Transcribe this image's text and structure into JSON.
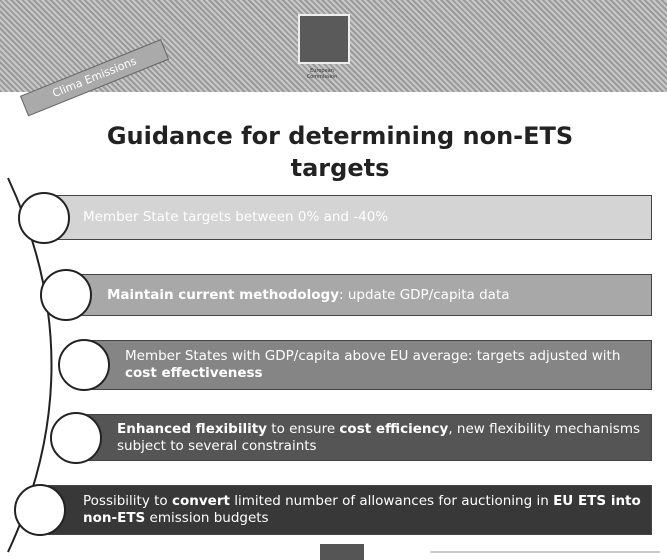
{
  "badge": "Clima Emissions",
  "logo_text": [
    "European",
    "Commission"
  ],
  "title": [
    "Guidance for determining non-ETS",
    "targets"
  ],
  "items": [
    {
      "parts": [
        {
          "text": "Member State targets between 0% and -40%",
          "bold": false
        }
      ]
    },
    {
      "parts": [
        {
          "text": "Maintain current methodology",
          "bold": true
        },
        {
          "text": ": update GDP/capita data",
          "bold": false
        }
      ]
    },
    {
      "parts": [
        {
          "text": "Member States with GDP/capita above EU average: targets adjusted with ",
          "bold": false
        },
        {
          "text": "cost effectiveness",
          "bold": true
        }
      ]
    },
    {
      "parts": [
        {
          "text": "Enhanced flexibility",
          "bold": true
        },
        {
          "text": " to ensure ",
          "bold": false
        },
        {
          "text": "cost efficiency",
          "bold": true
        },
        {
          "text": ", new flexibility mechanisms subject to several constraints",
          "bold": false
        }
      ]
    },
    {
      "parts": [
        {
          "text": "Possibility to ",
          "bold": false
        },
        {
          "text": "convert",
          "bold": true
        },
        {
          "text": " limited number of allowances for auctioning in ",
          "bold": false
        },
        {
          "text": "EU ETS into non-ETS",
          "bold": true
        },
        {
          "text": " emission budgets",
          "bold": false
        }
      ]
    }
  ]
}
